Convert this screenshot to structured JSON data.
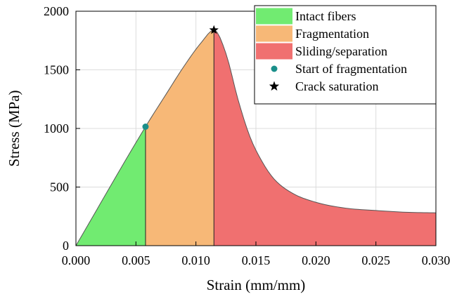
{
  "chart_data": {
    "type": "area",
    "xlabel": "Strain (mm/mm)",
    "ylabel": "Stress (MPa)",
    "xlim": [
      0,
      0.03
    ],
    "ylim": [
      0,
      2000
    ],
    "xticks": [
      "0.000",
      "0.005",
      "0.010",
      "0.015",
      "0.020",
      "0.025",
      "0.030"
    ],
    "yticks": [
      "0",
      "500",
      "1000",
      "1500",
      "2000"
    ],
    "grid": true,
    "legend_position": "top-right",
    "colors": {
      "intact": "#71eb71",
      "fragmentation": "#f7b877",
      "sliding": "#f07070",
      "start_marker": "#1a8f8a",
      "crack_marker": "#000000"
    },
    "curve": {
      "x": [
        0.0,
        0.0058,
        0.0075,
        0.009,
        0.0105,
        0.0115,
        0.0125,
        0.0135,
        0.0145,
        0.0155,
        0.0165,
        0.018,
        0.02,
        0.0225,
        0.025,
        0.0275,
        0.03
      ],
      "y": [
        0,
        1015,
        1290,
        1530,
        1740,
        1840,
        1640,
        1250,
        930,
        720,
        570,
        450,
        370,
        320,
        300,
        285,
        280
      ]
    },
    "regions": [
      {
        "name": "Intact fibers",
        "x_from": 0.0,
        "x_to": 0.0058,
        "color_key": "intact"
      },
      {
        "name": "Fragmentation",
        "x_from": 0.0058,
        "x_to": 0.0115,
        "color_key": "fragmentation"
      },
      {
        "name": "Sliding/separation",
        "x_from": 0.0115,
        "x_to": 0.03,
        "color_key": "sliding"
      }
    ],
    "points": [
      {
        "name": "Start of fragmentation",
        "x": 0.0058,
        "y": 1015,
        "marker": "circle"
      },
      {
        "name": "Crack saturation",
        "x": 0.0115,
        "y": 1840,
        "marker": "star"
      }
    ],
    "legend": [
      {
        "label": "Intact fibers",
        "kind": "patch",
        "color_key": "intact"
      },
      {
        "label": "Fragmentation",
        "kind": "patch",
        "color_key": "fragmentation"
      },
      {
        "label": "Sliding/separation",
        "kind": "patch",
        "color_key": "sliding"
      },
      {
        "label": "Start of fragmentation",
        "kind": "circle",
        "color_key": "start_marker"
      },
      {
        "label": "Crack saturation",
        "kind": "star",
        "color_key": "crack_marker"
      }
    ]
  }
}
